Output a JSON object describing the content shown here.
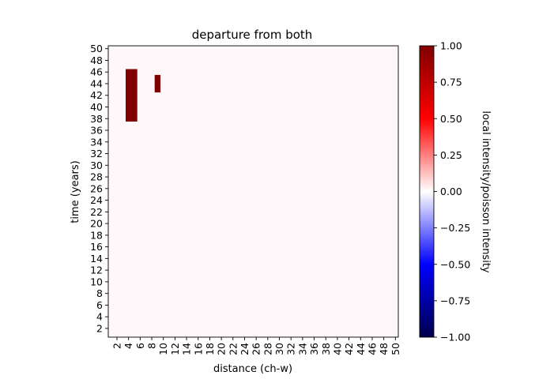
{
  "chart_data": {
    "type": "heatmap",
    "title": "departure from both",
    "xlabel": "distance (ch-w)",
    "ylabel": "time (years)",
    "x_ticks": [
      2,
      4,
      6,
      8,
      10,
      12,
      14,
      16,
      18,
      20,
      22,
      24,
      26,
      28,
      30,
      32,
      34,
      36,
      38,
      40,
      42,
      44,
      46,
      48,
      50
    ],
    "y_ticks": [
      2,
      4,
      6,
      8,
      10,
      12,
      14,
      16,
      18,
      20,
      22,
      24,
      26,
      28,
      30,
      32,
      34,
      36,
      38,
      40,
      42,
      44,
      46,
      48,
      50
    ],
    "x_range": [
      1,
      50
    ],
    "y_range": [
      1,
      50
    ],
    "background_value": 0.0,
    "cells": [
      {
        "x_start": 4,
        "x_end": 5,
        "y_start": 38,
        "y_end": 46,
        "value": 1.0
      },
      {
        "x_start": 9,
        "x_end": 9,
        "y_start": 43,
        "y_end": 45,
        "value": 1.0
      }
    ],
    "colorbar": {
      "label": "local intensity/poisson intensity",
      "colormap": "seismic",
      "min": -1.0,
      "max": 1.0,
      "ticks": [
        "1.00",
        "0.75",
        "0.50",
        "0.25",
        "0.00",
        "−0.25",
        "−0.50",
        "−0.75",
        "−1.00"
      ],
      "colors": [
        "#00004c",
        "#0000ff",
        "#ffffff",
        "#ff0000",
        "#800000"
      ]
    },
    "grid": false
  }
}
